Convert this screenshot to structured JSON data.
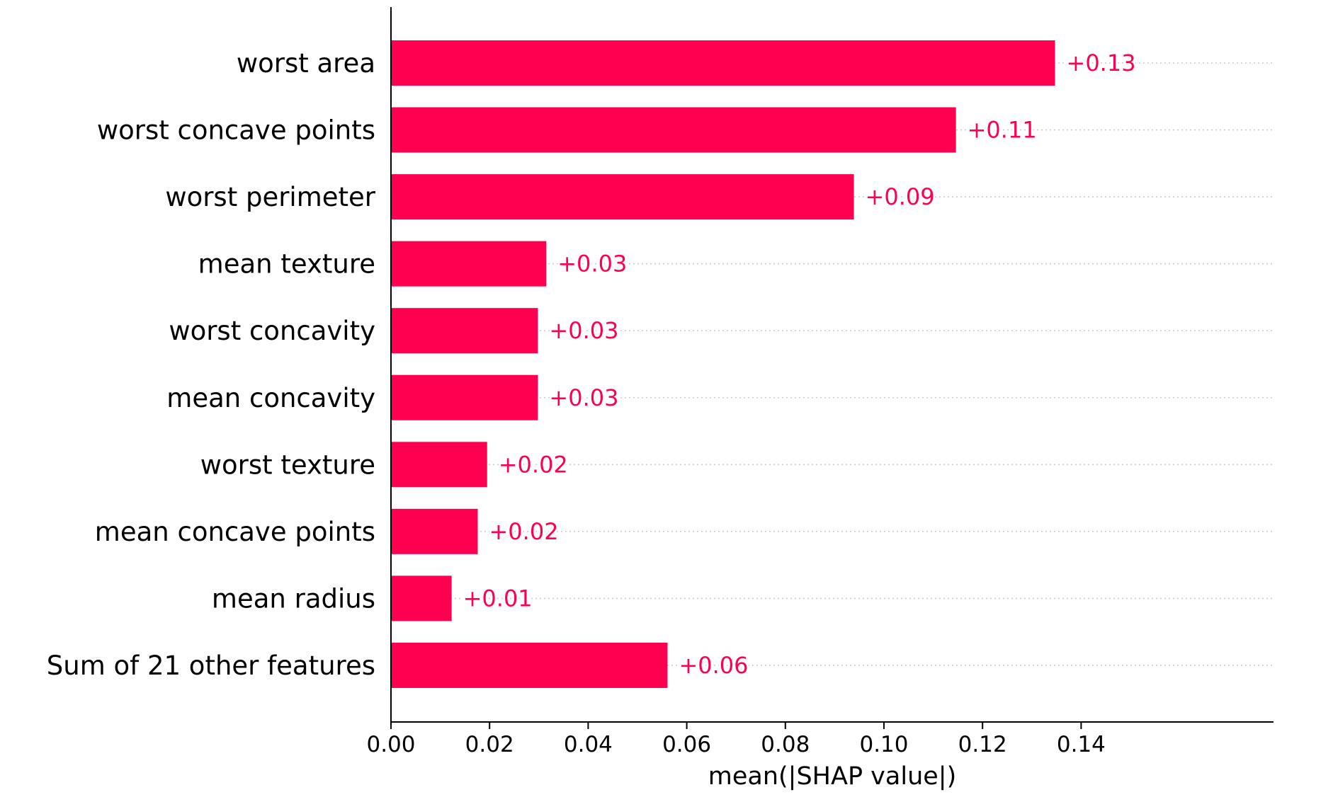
{
  "chart_data": {
    "type": "bar",
    "orientation": "horizontal",
    "categories": [
      "worst area",
      "worst concave points",
      "worst perimeter",
      "mean texture",
      "worst concavity",
      "mean concavity",
      "worst texture",
      "mean concave points",
      "mean radius",
      "Sum of 21 other features"
    ],
    "values": [
      0.1347,
      0.1146,
      0.0939,
      0.0315,
      0.0298,
      0.0298,
      0.0195,
      0.0176,
      0.0123,
      0.0561
    ],
    "value_labels": [
      "+0.13",
      "+0.11",
      "+0.09",
      "+0.03",
      "+0.03",
      "+0.03",
      "+0.02",
      "+0.02",
      "+0.01",
      "+0.06"
    ],
    "xlabel": "mean(|SHAP value|)",
    "ylabel": "",
    "xlim": [
      0,
      0.148
    ],
    "xticks": [
      "0.00",
      "0.02",
      "0.04",
      "0.06",
      "0.08",
      "0.10",
      "0.12",
      "0.14"
    ],
    "xtick_values": [
      0,
      0.02,
      0.04,
      0.06,
      0.08,
      0.1,
      0.12,
      0.14
    ],
    "bar_color": "#ff0051",
    "grid": false,
    "legend": "none"
  }
}
